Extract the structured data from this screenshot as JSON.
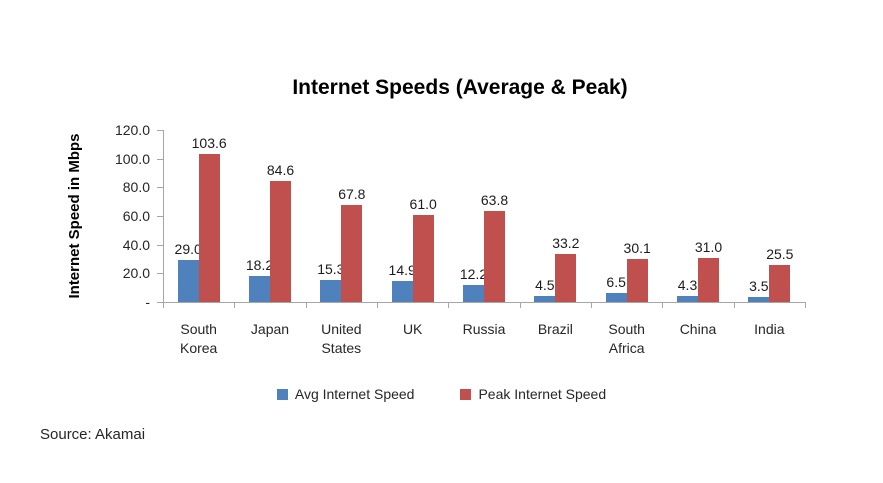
{
  "chart_data": {
    "type": "bar",
    "title": "Internet Speeds (Average & Peak)",
    "ylabel": "Internet Speed in Mbps",
    "categories": [
      "South Korea",
      "Japan",
      "United States",
      "UK",
      "Russia",
      "Brazil",
      "South Africa",
      "China",
      "India"
    ],
    "series": [
      {
        "name": "Avg Internet Speed",
        "color": "#4F81BD",
        "values": [
          29.0,
          18.2,
          15.3,
          14.9,
          12.2,
          4.5,
          6.5,
          4.3,
          3.5
        ]
      },
      {
        "name": "Peak Internet Speed",
        "color": "#C0504D",
        "values": [
          103.6,
          84.6,
          67.8,
          61.0,
          63.8,
          33.2,
          30.1,
          31.0,
          25.5
        ]
      }
    ],
    "ylim": [
      0,
      120
    ],
    "ytick_step": 20,
    "ytick_labels": [
      "-",
      "20.0",
      "40.0",
      "60.0",
      "80.0",
      "100.0",
      "120.0"
    ],
    "data_labels": "outside-end, one decimal",
    "legend_position": "bottom",
    "grid": false
  },
  "source": "Source: Akamai"
}
